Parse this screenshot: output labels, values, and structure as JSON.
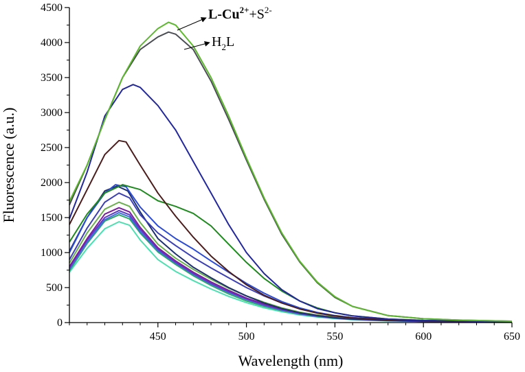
{
  "chart_data": {
    "type": "line",
    "xlabel": "Wavelength (nm)",
    "ylabel": "Fluorescence (a.u.)",
    "xlim": [
      400,
      650
    ],
    "ylim": [
      0,
      4500
    ],
    "xticks": [
      450,
      500,
      550,
      600,
      650
    ],
    "yticks": [
      0,
      500,
      1000,
      1500,
      2000,
      2500,
      3000,
      3500,
      4000,
      4500
    ],
    "grid": false,
    "legend": "none",
    "annotations": [
      {
        "main": "L-Cu",
        "sup": "2+",
        "rest": "+S",
        "sup2": "2-",
        "target_series": 0
      },
      {
        "main": "H",
        "sub": "2",
        "rest": "L",
        "target_series": 1
      }
    ],
    "series": [
      {
        "color": "#5cb82c",
        "points": [
          [
            400,
            1730
          ],
          [
            410,
            2250
          ],
          [
            420,
            2900
          ],
          [
            430,
            3500
          ],
          [
            440,
            3950
          ],
          [
            450,
            4200
          ],
          [
            456,
            4290
          ],
          [
            460,
            4250
          ],
          [
            470,
            3950
          ],
          [
            480,
            3500
          ],
          [
            490,
            2950
          ],
          [
            500,
            2350
          ],
          [
            510,
            1780
          ],
          [
            520,
            1280
          ],
          [
            530,
            880
          ],
          [
            540,
            580
          ],
          [
            550,
            370
          ],
          [
            560,
            230
          ],
          [
            580,
            100
          ],
          [
            600,
            55
          ],
          [
            620,
            35
          ],
          [
            650,
            20
          ]
        ]
      },
      {
        "color": "#4a4e54",
        "points": [
          [
            400,
            1680
          ],
          [
            410,
            2250
          ],
          [
            420,
            2900
          ],
          [
            430,
            3500
          ],
          [
            440,
            3900
          ],
          [
            450,
            4080
          ],
          [
            456,
            4150
          ],
          [
            460,
            4120
          ],
          [
            470,
            3900
          ],
          [
            480,
            3450
          ],
          [
            490,
            2900
          ],
          [
            500,
            2320
          ],
          [
            510,
            1760
          ],
          [
            520,
            1260
          ],
          [
            530,
            870
          ],
          [
            540,
            570
          ],
          [
            550,
            360
          ],
          [
            560,
            230
          ],
          [
            580,
            100
          ],
          [
            600,
            55
          ],
          [
            620,
            35
          ],
          [
            650,
            20
          ]
        ]
      },
      {
        "color": "#22279a",
        "points": [
          [
            400,
            1480
          ],
          [
            410,
            2150
          ],
          [
            420,
            2950
          ],
          [
            430,
            3330
          ],
          [
            436,
            3400
          ],
          [
            440,
            3360
          ],
          [
            450,
            3100
          ],
          [
            460,
            2750
          ],
          [
            470,
            2300
          ],
          [
            480,
            1850
          ],
          [
            490,
            1400
          ],
          [
            500,
            1000
          ],
          [
            510,
            700
          ],
          [
            520,
            470
          ],
          [
            530,
            310
          ],
          [
            540,
            200
          ],
          [
            550,
            140
          ],
          [
            560,
            95
          ],
          [
            580,
            50
          ],
          [
            600,
            30
          ],
          [
            650,
            15
          ]
        ]
      },
      {
        "color": "#4a1c1c",
        "points": [
          [
            400,
            1400
          ],
          [
            410,
            1900
          ],
          [
            420,
            2400
          ],
          [
            428,
            2600
          ],
          [
            432,
            2580
          ],
          [
            440,
            2250
          ],
          [
            450,
            1850
          ],
          [
            460,
            1520
          ],
          [
            470,
            1220
          ],
          [
            480,
            950
          ],
          [
            490,
            730
          ],
          [
            500,
            540
          ],
          [
            510,
            390
          ],
          [
            520,
            280
          ],
          [
            530,
            195
          ],
          [
            540,
            135
          ],
          [
            550,
            95
          ],
          [
            560,
            68
          ],
          [
            580,
            38
          ],
          [
            600,
            25
          ],
          [
            650,
            12
          ]
        ]
      },
      {
        "color": "#1e8a1e",
        "points": [
          [
            400,
            1150
          ],
          [
            410,
            1550
          ],
          [
            420,
            1850
          ],
          [
            430,
            1970
          ],
          [
            440,
            1900
          ],
          [
            450,
            1740
          ],
          [
            460,
            1660
          ],
          [
            470,
            1560
          ],
          [
            480,
            1380
          ],
          [
            490,
            1120
          ],
          [
            500,
            860
          ],
          [
            510,
            630
          ],
          [
            520,
            450
          ],
          [
            530,
            310
          ],
          [
            540,
            210
          ],
          [
            550,
            140
          ],
          [
            560,
            95
          ],
          [
            580,
            50
          ],
          [
            600,
            30
          ],
          [
            650,
            15
          ]
        ]
      },
      {
        "color": "#2b4bd6",
        "points": [
          [
            400,
            1000
          ],
          [
            410,
            1500
          ],
          [
            420,
            1850
          ],
          [
            426,
            1970
          ],
          [
            432,
            1940
          ],
          [
            440,
            1650
          ],
          [
            450,
            1380
          ],
          [
            460,
            1200
          ],
          [
            470,
            1050
          ],
          [
            480,
            880
          ],
          [
            490,
            720
          ],
          [
            500,
            560
          ],
          [
            510,
            420
          ],
          [
            520,
            300
          ],
          [
            530,
            210
          ],
          [
            540,
            145
          ],
          [
            550,
            100
          ],
          [
            560,
            70
          ],
          [
            580,
            40
          ],
          [
            600,
            25
          ],
          [
            650,
            12
          ]
        ]
      },
      {
        "color": "#3b3fb5",
        "points": [
          [
            400,
            900
          ],
          [
            410,
            1350
          ],
          [
            420,
            1720
          ],
          [
            428,
            1850
          ],
          [
            434,
            1780
          ],
          [
            440,
            1540
          ],
          [
            450,
            1280
          ],
          [
            460,
            1100
          ],
          [
            470,
            930
          ],
          [
            480,
            780
          ],
          [
            490,
            640
          ],
          [
            500,
            500
          ],
          [
            510,
            380
          ],
          [
            520,
            280
          ],
          [
            530,
            200
          ],
          [
            540,
            140
          ],
          [
            550,
            95
          ],
          [
            560,
            65
          ],
          [
            580,
            38
          ],
          [
            600,
            24
          ],
          [
            650,
            12
          ]
        ]
      },
      {
        "color": "#1d2f6e",
        "points": [
          [
            400,
            1020
          ],
          [
            410,
            1500
          ],
          [
            420,
            1880
          ],
          [
            427,
            1950
          ],
          [
            433,
            1880
          ],
          [
            440,
            1580
          ],
          [
            450,
            1200
          ],
          [
            460,
            980
          ],
          [
            470,
            790
          ],
          [
            480,
            640
          ],
          [
            490,
            500
          ],
          [
            500,
            380
          ],
          [
            510,
            280
          ],
          [
            520,
            200
          ],
          [
            530,
            140
          ],
          [
            540,
            100
          ],
          [
            550,
            70
          ],
          [
            560,
            50
          ],
          [
            580,
            30
          ],
          [
            600,
            20
          ],
          [
            650,
            10
          ]
        ]
      },
      {
        "color": "#6ab04c",
        "points": [
          [
            400,
            850
          ],
          [
            410,
            1280
          ],
          [
            420,
            1620
          ],
          [
            428,
            1720
          ],
          [
            434,
            1660
          ],
          [
            440,
            1430
          ],
          [
            450,
            1120
          ],
          [
            460,
            920
          ],
          [
            470,
            760
          ],
          [
            480,
            620
          ],
          [
            490,
            490
          ],
          [
            500,
            380
          ],
          [
            510,
            290
          ],
          [
            520,
            210
          ],
          [
            530,
            150
          ],
          [
            540,
            108
          ],
          [
            550,
            78
          ],
          [
            560,
            55
          ],
          [
            580,
            33
          ],
          [
            600,
            22
          ],
          [
            650,
            10
          ]
        ]
      },
      {
        "color": "#7b1ea0",
        "points": [
          [
            400,
            800
          ],
          [
            410,
            1200
          ],
          [
            420,
            1550
          ],
          [
            428,
            1640
          ],
          [
            434,
            1580
          ],
          [
            440,
            1360
          ],
          [
            450,
            1070
          ],
          [
            460,
            880
          ],
          [
            470,
            720
          ],
          [
            480,
            580
          ],
          [
            490,
            460
          ],
          [
            500,
            350
          ],
          [
            510,
            265
          ],
          [
            520,
            195
          ],
          [
            530,
            140
          ],
          [
            540,
            100
          ],
          [
            550,
            72
          ],
          [
            560,
            52
          ],
          [
            580,
            30
          ],
          [
            600,
            20
          ],
          [
            650,
            10
          ]
        ]
      },
      {
        "color": "#5a3cc8",
        "points": [
          [
            400,
            780
          ],
          [
            410,
            1180
          ],
          [
            420,
            1500
          ],
          [
            428,
            1600
          ],
          [
            434,
            1540
          ],
          [
            440,
            1330
          ],
          [
            450,
            1050
          ],
          [
            460,
            860
          ],
          [
            470,
            700
          ],
          [
            480,
            560
          ],
          [
            490,
            440
          ],
          [
            500,
            340
          ],
          [
            510,
            255
          ],
          [
            520,
            185
          ],
          [
            530,
            130
          ],
          [
            540,
            95
          ],
          [
            550,
            68
          ],
          [
            560,
            48
          ],
          [
            580,
            28
          ],
          [
            600,
            18
          ],
          [
            650,
            9
          ]
        ]
      },
      {
        "color": "#3a6fd8",
        "points": [
          [
            400,
            760
          ],
          [
            410,
            1150
          ],
          [
            420,
            1470
          ],
          [
            428,
            1570
          ],
          [
            434,
            1510
          ],
          [
            440,
            1300
          ],
          [
            450,
            1030
          ],
          [
            460,
            850
          ],
          [
            470,
            690
          ],
          [
            480,
            550
          ],
          [
            490,
            430
          ],
          [
            500,
            330
          ],
          [
            510,
            245
          ],
          [
            520,
            178
          ],
          [
            530,
            125
          ],
          [
            540,
            90
          ],
          [
            550,
            65
          ],
          [
            560,
            46
          ],
          [
            580,
            27
          ],
          [
            600,
            18
          ],
          [
            650,
            9
          ]
        ]
      },
      {
        "color": "#2ca860",
        "points": [
          [
            400,
            740
          ],
          [
            410,
            1130
          ],
          [
            420,
            1450
          ],
          [
            428,
            1540
          ],
          [
            434,
            1480
          ],
          [
            440,
            1280
          ],
          [
            450,
            1010
          ],
          [
            460,
            830
          ],
          [
            470,
            670
          ],
          [
            480,
            530
          ],
          [
            490,
            410
          ],
          [
            500,
            310
          ],
          [
            510,
            232
          ],
          [
            520,
            170
          ],
          [
            530,
            120
          ],
          [
            540,
            86
          ],
          [
            550,
            62
          ],
          [
            560,
            44
          ],
          [
            580,
            26
          ],
          [
            600,
            17
          ],
          [
            650,
            9
          ]
        ]
      },
      {
        "color": "#4ce0b0",
        "points": [
          [
            400,
            720
          ],
          [
            410,
            1060
          ],
          [
            420,
            1340
          ],
          [
            428,
            1440
          ],
          [
            434,
            1390
          ],
          [
            440,
            1180
          ],
          [
            450,
            900
          ],
          [
            460,
            730
          ],
          [
            470,
            600
          ],
          [
            480,
            480
          ],
          [
            490,
            375
          ],
          [
            500,
            285
          ],
          [
            510,
            212
          ],
          [
            520,
            155
          ],
          [
            530,
            110
          ],
          [
            540,
            79
          ],
          [
            550,
            57
          ],
          [
            560,
            41
          ],
          [
            580,
            24
          ],
          [
            600,
            16
          ],
          [
            650,
            8
          ]
        ]
      }
    ]
  }
}
